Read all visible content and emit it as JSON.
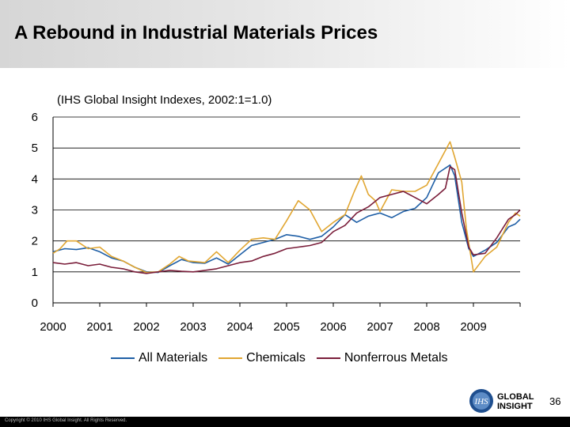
{
  "slide": {
    "title": "A Rebound in Industrial Materials Prices",
    "page_number": "36",
    "copyright": "Copyright © 2010 IHS Global Insight. All Rights Reserved.",
    "logo_text_1": "GLOBAL",
    "logo_text_2": "INSIGHT",
    "logo_badge": "IHS"
  },
  "chart_data": {
    "type": "line",
    "subtitle": "(IHS Global Insight Indexes, 2002:1=1.0)",
    "xlabel": "",
    "ylabel": "",
    "xlim": [
      2000,
      2010
    ],
    "ylim": [
      0,
      6
    ],
    "y_ticks": [
      0,
      1,
      2,
      3,
      4,
      5,
      6
    ],
    "x_tick_labels": [
      "2000",
      "2001",
      "2002",
      "2003",
      "2004",
      "2005",
      "2006",
      "2007",
      "2008",
      "2009"
    ],
    "grid": true,
    "legend_position": "bottom",
    "series": [
      {
        "name": "All Materials",
        "color": "#1f5fa6",
        "points": [
          [
            2000.0,
            1.65
          ],
          [
            2000.25,
            1.75
          ],
          [
            2000.5,
            1.72
          ],
          [
            2000.75,
            1.78
          ],
          [
            2001.0,
            1.65
          ],
          [
            2001.25,
            1.45
          ],
          [
            2001.5,
            1.35
          ],
          [
            2001.75,
            1.15
          ],
          [
            2002.0,
            1.0
          ],
          [
            2002.25,
            0.98
          ],
          [
            2002.5,
            1.2
          ],
          [
            2002.75,
            1.4
          ],
          [
            2003.0,
            1.3
          ],
          [
            2003.25,
            1.28
          ],
          [
            2003.5,
            1.45
          ],
          [
            2003.75,
            1.25
          ],
          [
            2004.0,
            1.55
          ],
          [
            2004.25,
            1.85
          ],
          [
            2004.5,
            1.95
          ],
          [
            2004.75,
            2.05
          ],
          [
            2005.0,
            2.2
          ],
          [
            2005.25,
            2.15
          ],
          [
            2005.5,
            2.05
          ],
          [
            2005.75,
            2.15
          ],
          [
            2006.0,
            2.45
          ],
          [
            2006.25,
            2.85
          ],
          [
            2006.5,
            2.6
          ],
          [
            2006.75,
            2.8
          ],
          [
            2007.0,
            2.9
          ],
          [
            2007.25,
            2.75
          ],
          [
            2007.5,
            2.95
          ],
          [
            2007.75,
            3.05
          ],
          [
            2008.0,
            3.4
          ],
          [
            2008.25,
            4.2
          ],
          [
            2008.5,
            4.45
          ],
          [
            2008.6,
            4.1
          ],
          [
            2008.75,
            2.6
          ],
          [
            2008.9,
            1.75
          ],
          [
            2009.0,
            1.5
          ],
          [
            2009.25,
            1.7
          ],
          [
            2009.5,
            1.95
          ],
          [
            2009.75,
            2.45
          ],
          [
            2009.9,
            2.55
          ],
          [
            2010.0,
            2.7
          ]
        ]
      },
      {
        "name": "Chemicals",
        "color": "#e1a631",
        "points": [
          [
            2000.0,
            1.6
          ],
          [
            2000.15,
            1.75
          ],
          [
            2000.3,
            2.0
          ],
          [
            2000.5,
            2.0
          ],
          [
            2000.75,
            1.75
          ],
          [
            2001.0,
            1.8
          ],
          [
            2001.25,
            1.5
          ],
          [
            2001.5,
            1.35
          ],
          [
            2001.75,
            1.15
          ],
          [
            2002.0,
            0.98
          ],
          [
            2002.25,
            1.0
          ],
          [
            2002.5,
            1.25
          ],
          [
            2002.7,
            1.5
          ],
          [
            2002.9,
            1.35
          ],
          [
            2003.25,
            1.3
          ],
          [
            2003.5,
            1.65
          ],
          [
            2003.75,
            1.3
          ],
          [
            2004.0,
            1.7
          ],
          [
            2004.25,
            2.05
          ],
          [
            2004.5,
            2.1
          ],
          [
            2004.75,
            2.05
          ],
          [
            2005.0,
            2.65
          ],
          [
            2005.25,
            3.3
          ],
          [
            2005.5,
            3.0
          ],
          [
            2005.75,
            2.3
          ],
          [
            2006.0,
            2.6
          ],
          [
            2006.25,
            2.85
          ],
          [
            2006.45,
            3.6
          ],
          [
            2006.6,
            4.1
          ],
          [
            2006.75,
            3.5
          ],
          [
            2006.9,
            3.3
          ],
          [
            2007.0,
            2.95
          ],
          [
            2007.25,
            3.65
          ],
          [
            2007.5,
            3.6
          ],
          [
            2007.75,
            3.6
          ],
          [
            2008.0,
            3.8
          ],
          [
            2008.25,
            4.5
          ],
          [
            2008.5,
            5.2
          ],
          [
            2008.6,
            4.7
          ],
          [
            2008.75,
            3.9
          ],
          [
            2008.85,
            2.4
          ],
          [
            2009.0,
            1.0
          ],
          [
            2009.25,
            1.5
          ],
          [
            2009.5,
            1.8
          ],
          [
            2009.75,
            2.6
          ],
          [
            2009.9,
            2.9
          ],
          [
            2010.0,
            2.8
          ]
        ]
      },
      {
        "name": "Nonferrous Metals",
        "color": "#7a1e3a",
        "points": [
          [
            2000.0,
            1.3
          ],
          [
            2000.25,
            1.25
          ],
          [
            2000.5,
            1.3
          ],
          [
            2000.75,
            1.2
          ],
          [
            2001.0,
            1.25
          ],
          [
            2001.25,
            1.15
          ],
          [
            2001.5,
            1.1
          ],
          [
            2001.75,
            1.0
          ],
          [
            2002.0,
            0.95
          ],
          [
            2002.25,
            1.0
          ],
          [
            2002.5,
            1.05
          ],
          [
            2002.75,
            1.02
          ],
          [
            2003.0,
            1.0
          ],
          [
            2003.25,
            1.05
          ],
          [
            2003.5,
            1.1
          ],
          [
            2003.75,
            1.2
          ],
          [
            2004.0,
            1.3
          ],
          [
            2004.25,
            1.35
          ],
          [
            2004.5,
            1.5
          ],
          [
            2004.75,
            1.6
          ],
          [
            2005.0,
            1.75
          ],
          [
            2005.25,
            1.8
          ],
          [
            2005.5,
            1.85
          ],
          [
            2005.75,
            1.95
          ],
          [
            2006.0,
            2.3
          ],
          [
            2006.25,
            2.5
          ],
          [
            2006.5,
            2.9
          ],
          [
            2006.75,
            3.1
          ],
          [
            2007.0,
            3.4
          ],
          [
            2007.25,
            3.5
          ],
          [
            2007.5,
            3.6
          ],
          [
            2007.75,
            3.4
          ],
          [
            2008.0,
            3.2
          ],
          [
            2008.25,
            3.5
          ],
          [
            2008.4,
            3.7
          ],
          [
            2008.5,
            4.4
          ],
          [
            2008.6,
            4.3
          ],
          [
            2008.75,
            2.9
          ],
          [
            2008.9,
            1.8
          ],
          [
            2009.0,
            1.55
          ],
          [
            2009.25,
            1.6
          ],
          [
            2009.5,
            2.1
          ],
          [
            2009.75,
            2.7
          ],
          [
            2009.9,
            2.85
          ],
          [
            2010.0,
            3.0
          ]
        ]
      }
    ]
  }
}
